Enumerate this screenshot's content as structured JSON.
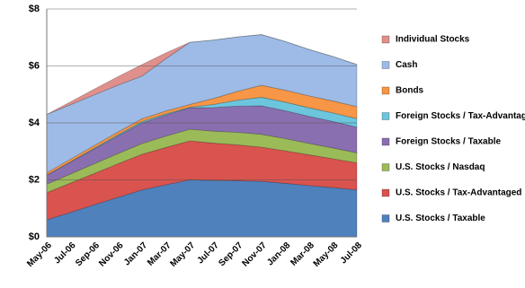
{
  "chart_data": {
    "type": "stacked-area",
    "categories": [
      "May-06",
      "Jul-06",
      "Sep-06",
      "Nov-06",
      "Jan-07",
      "Mar-07",
      "May-07",
      "Jul-07",
      "Sep-07",
      "Nov-07",
      "Jan-08",
      "Mar-08",
      "May-08",
      "Jul-08"
    ],
    "ylim": [
      0,
      8
    ],
    "yticks": [
      {
        "value": 0,
        "label": "$0"
      },
      {
        "value": 2,
        "label": "$2"
      },
      {
        "value": 4,
        "label": "$4"
      },
      {
        "value": 6,
        "label": "$6"
      },
      {
        "value": 8,
        "label": "$8"
      }
    ],
    "grid": true,
    "legend": "right",
    "series": [
      {
        "name": "U.S. Stocks / Taxable",
        "color": "#4f81bd",
        "values": [
          0.6,
          0.86,
          1.13,
          1.39,
          1.65,
          1.83,
          2.0,
          1.98,
          1.97,
          1.95,
          1.88,
          1.8,
          1.73,
          1.65
        ]
      },
      {
        "name": "U.S. Stocks / Tax-Advantaged",
        "color": "#d9534f",
        "values": [
          0.95,
          1.03,
          1.1,
          1.18,
          1.25,
          1.31,
          1.37,
          1.31,
          1.26,
          1.2,
          1.14,
          1.08,
          1.01,
          0.95
        ]
      },
      {
        "name": "U.S. Stocks / Nasdaq",
        "color": "#9bbb59",
        "values": [
          0.3,
          0.32,
          0.34,
          0.36,
          0.38,
          0.4,
          0.41,
          0.42,
          0.44,
          0.45,
          0.43,
          0.4,
          0.38,
          0.35
        ]
      },
      {
        "name": "Foreign Stocks / Taxable",
        "color": "#8a6fb0",
        "values": [
          0.32,
          0.42,
          0.52,
          0.62,
          0.72,
          0.74,
          0.75,
          0.83,
          0.92,
          1.0,
          0.98,
          0.95,
          0.93,
          0.9
        ]
      },
      {
        "name": "Foreign Stocks / Tax-Advantaged",
        "color": "#6cc5dd",
        "values": [
          0,
          0.01,
          0.03,
          0.04,
          0.05,
          0.04,
          0.02,
          0.11,
          0.21,
          0.3,
          0.3,
          0.3,
          0.3,
          0.3
        ]
      },
      {
        "name": "Bonds",
        "color": "#f79646",
        "values": [
          0.08,
          0.09,
          0.09,
          0.1,
          0.1,
          0.1,
          0.1,
          0.21,
          0.31,
          0.42,
          0.42,
          0.42,
          0.42,
          0.42
        ]
      },
      {
        "name": "Cash",
        "color": "#9dbbe6",
        "values": [
          2.05,
          1.91,
          1.78,
          1.64,
          1.5,
          1.84,
          2.18,
          2.05,
          1.91,
          1.78,
          1.71,
          1.63,
          1.56,
          1.48
        ]
      },
      {
        "name": "Individual Stocks",
        "color": "#e0908c",
        "values": [
          0,
          0.1,
          0.2,
          0.3,
          0.4,
          0.2,
          0,
          0,
          0,
          0,
          0,
          0,
          0,
          0
        ]
      }
    ]
  }
}
